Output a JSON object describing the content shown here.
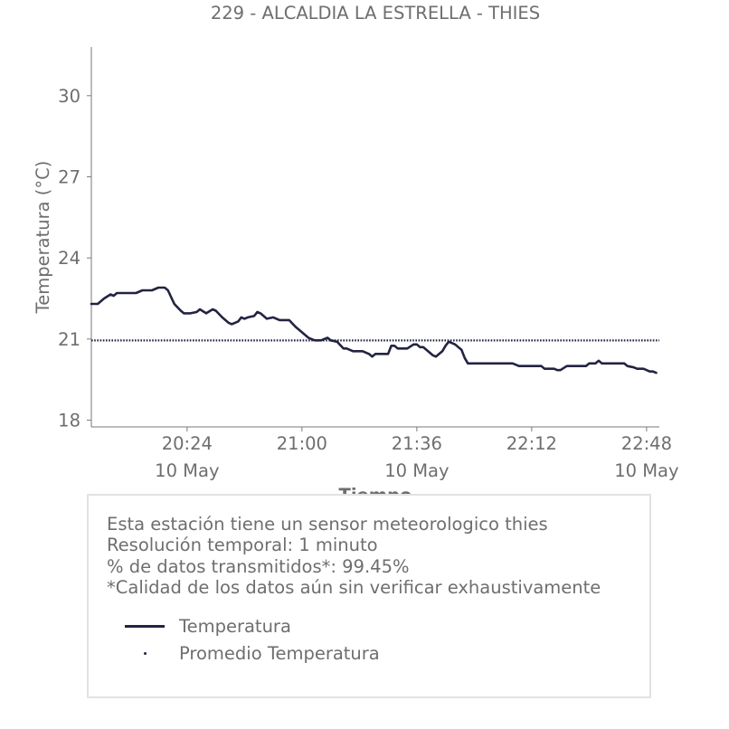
{
  "chart_data": {
    "type": "line",
    "title": "229 - ALCALDIA LA ESTRELLA - THIES",
    "xlabel": "Tiempo",
    "ylabel": "Temperatura (°C)",
    "x_range": [
      "19:54",
      "22:52"
    ],
    "ylim": [
      17.75,
      31.8
    ],
    "yticks": [
      18,
      21,
      24,
      27,
      30
    ],
    "xticks": [
      {
        "time": "20:24",
        "label": "20:24",
        "sublabel": "10 May"
      },
      {
        "time": "21:00",
        "label": "21:00",
        "sublabel": ""
      },
      {
        "time": "21:36",
        "label": "21:36",
        "sublabel": "10 May"
      },
      {
        "time": "22:12",
        "label": "22:12",
        "sublabel": ""
      },
      {
        "time": "22:48",
        "label": "22:48",
        "sublabel": "10 May"
      }
    ],
    "legend_position": "below",
    "grid": false,
    "series": [
      {
        "name": "Temperatura",
        "color": "#232342",
        "style": "solid",
        "points": [
          [
            "19:54",
            22.3
          ],
          [
            "19:56",
            22.3
          ],
          [
            "19:58",
            22.5
          ],
          [
            "20:00",
            22.65
          ],
          [
            "20:01",
            22.6
          ],
          [
            "20:02",
            22.7
          ],
          [
            "20:05",
            22.7
          ],
          [
            "20:08",
            22.7
          ],
          [
            "20:10",
            22.8
          ],
          [
            "20:13",
            22.8
          ],
          [
            "20:15",
            22.9
          ],
          [
            "20:17",
            22.9
          ],
          [
            "20:18",
            22.8
          ],
          [
            "20:20",
            22.3
          ],
          [
            "20:22",
            22.05
          ],
          [
            "20:23",
            21.95
          ],
          [
            "20:25",
            21.95
          ],
          [
            "20:27",
            22.0
          ],
          [
            "20:28",
            22.1
          ],
          [
            "20:30",
            21.95
          ],
          [
            "20:32",
            22.1
          ],
          [
            "20:33",
            22.05
          ],
          [
            "20:35",
            21.8
          ],
          [
            "20:37",
            21.6
          ],
          [
            "20:38",
            21.55
          ],
          [
            "20:40",
            21.65
          ],
          [
            "20:41",
            21.8
          ],
          [
            "20:42",
            21.75
          ],
          [
            "20:43",
            21.8
          ],
          [
            "20:45",
            21.85
          ],
          [
            "20:46",
            22.0
          ],
          [
            "20:47",
            21.95
          ],
          [
            "20:49",
            21.75
          ],
          [
            "20:51",
            21.8
          ],
          [
            "20:52",
            21.75
          ],
          [
            "20:53",
            21.7
          ],
          [
            "20:56",
            21.7
          ],
          [
            "20:58",
            21.45
          ],
          [
            "21:00",
            21.25
          ],
          [
            "21:02",
            21.05
          ],
          [
            "21:04",
            20.95
          ],
          [
            "21:06",
            20.95
          ],
          [
            "21:07",
            21.0
          ],
          [
            "21:08",
            21.05
          ],
          [
            "21:09",
            20.95
          ],
          [
            "21:11",
            20.9
          ],
          [
            "21:13",
            20.65
          ],
          [
            "21:14",
            20.65
          ],
          [
            "21:16",
            20.55
          ],
          [
            "21:19",
            20.55
          ],
          [
            "21:21",
            20.45
          ],
          [
            "21:22",
            20.35
          ],
          [
            "21:23",
            20.45
          ],
          [
            "21:27",
            20.45
          ],
          [
            "21:28",
            20.75
          ],
          [
            "21:29",
            20.75
          ],
          [
            "21:30",
            20.65
          ],
          [
            "21:33",
            20.65
          ],
          [
            "21:35",
            20.8
          ],
          [
            "21:36",
            20.8
          ],
          [
            "21:37",
            20.7
          ],
          [
            "21:38",
            20.7
          ],
          [
            "21:41",
            20.4
          ],
          [
            "21:42",
            20.35
          ],
          [
            "21:44",
            20.55
          ],
          [
            "21:45",
            20.75
          ],
          [
            "21:46",
            20.9
          ],
          [
            "21:47",
            20.85
          ],
          [
            "21:48",
            20.8
          ],
          [
            "21:49",
            20.7
          ],
          [
            "21:50",
            20.6
          ],
          [
            "21:51",
            20.3
          ],
          [
            "21:52",
            20.1
          ],
          [
            "21:54",
            20.1
          ],
          [
            "22:00",
            20.1
          ],
          [
            "22:06",
            20.1
          ],
          [
            "22:07",
            20.05
          ],
          [
            "22:08",
            20.0
          ],
          [
            "22:12",
            20.0
          ],
          [
            "22:15",
            20.0
          ],
          [
            "22:16",
            19.9
          ],
          [
            "22:19",
            19.9
          ],
          [
            "22:20",
            19.85
          ],
          [
            "22:21",
            19.85
          ],
          [
            "22:23",
            20.0
          ],
          [
            "22:29",
            20.0
          ],
          [
            "22:30",
            20.1
          ],
          [
            "22:32",
            20.1
          ],
          [
            "22:33",
            20.2
          ],
          [
            "22:34",
            20.1
          ],
          [
            "22:41",
            20.1
          ],
          [
            "22:42",
            20.0
          ],
          [
            "22:44",
            19.95
          ],
          [
            "22:45",
            19.9
          ],
          [
            "22:47",
            19.9
          ],
          [
            "22:49",
            19.8
          ],
          [
            "22:50",
            19.8
          ],
          [
            "22:51",
            19.75
          ]
        ]
      },
      {
        "name": "Promedio Temperatura",
        "color": "#232342",
        "style": "dotted",
        "value": 20.95
      }
    ]
  },
  "info": {
    "lines": [
      "Esta estación tiene un sensor meteorologico thies",
      "Resolución temporal: 1 minuto",
      "% de datos transmitidos*: 99.45%",
      "*Calidad de los datos aún sin verificar exhaustivamente"
    ]
  },
  "legend": {
    "items": [
      {
        "label": "Temperatura",
        "marker": "line"
      },
      {
        "label": "Promedio Temperatura",
        "marker": "dot"
      }
    ]
  }
}
